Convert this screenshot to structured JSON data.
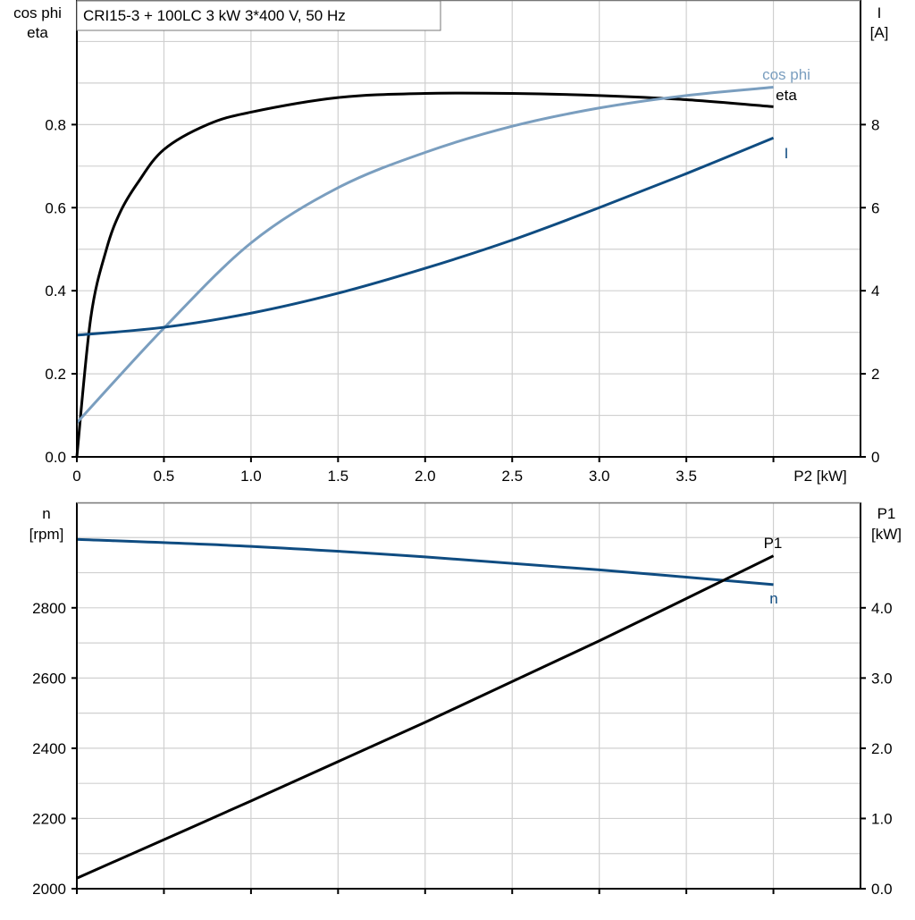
{
  "title": "CRI15-3 + 100LC   3 kW   3*400 V, 50 Hz",
  "chart_data": [
    {
      "type": "line",
      "xlabel": "P2 [kW]",
      "ylabel_left": [
        "cos phi",
        "eta"
      ],
      "ylabel_right": [
        "I",
        "[A]"
      ],
      "xlim": [
        0,
        4.5
      ],
      "ylim_left": [
        0,
        1.1
      ],
      "ylim_right": [
        0,
        11
      ],
      "x_ticks": [
        "0",
        "0.5",
        "1.0",
        "1.5",
        "2.0",
        "2.5",
        "3.0",
        "3.5"
      ],
      "y_ticks_left": [
        "0.0",
        "0.2",
        "0.4",
        "0.6",
        "0.8"
      ],
      "y_ticks_right": [
        "0",
        "2",
        "4",
        "6",
        "8"
      ],
      "grid": true,
      "series": [
        {
          "name": "eta",
          "axis": "left",
          "color": "#000000",
          "x": [
            0,
            0.08,
            0.17,
            0.25,
            0.35,
            0.5,
            0.75,
            1.0,
            1.5,
            2.0,
            2.5,
            3.0,
            3.5,
            4.0
          ],
          "y": [
            0,
            0.335,
            0.5,
            0.59,
            0.66,
            0.74,
            0.8,
            0.83,
            0.865,
            0.875,
            0.875,
            0.87,
            0.86,
            0.843
          ]
        },
        {
          "name": "cos phi",
          "axis": "left",
          "color": "#7a9ebf",
          "x": [
            0,
            0.5,
            1.0,
            1.5,
            2.0,
            2.5,
            3.0,
            3.5,
            4.0
          ],
          "y": [
            0.082,
            0.31,
            0.515,
            0.648,
            0.733,
            0.796,
            0.84,
            0.87,
            0.89
          ]
        },
        {
          "name": "I",
          "axis": "right",
          "color": "#0f4c81",
          "x": [
            0,
            0.5,
            1.0,
            1.5,
            2.0,
            2.5,
            3.0,
            3.5,
            4.0
          ],
          "y": [
            2.93,
            3.12,
            3.46,
            3.94,
            4.54,
            5.22,
            6.0,
            6.82,
            7.68
          ]
        }
      ]
    },
    {
      "type": "line",
      "ylabel_left": [
        "n",
        "[rpm]"
      ],
      "ylabel_right": [
        "P1",
        "[kW]"
      ],
      "xlim": [
        0,
        4.5
      ],
      "ylim_left": [
        2000,
        3100
      ],
      "ylim_right": [
        0,
        5.5
      ],
      "y_ticks_left": [
        "2000",
        "2200",
        "2400",
        "2600",
        "2800"
      ],
      "y_ticks_right": [
        "0.0",
        "1.0",
        "2.0",
        "3.0",
        "4.0"
      ],
      "grid": true,
      "series": [
        {
          "name": "n",
          "axis": "left",
          "color": "#0f4c81",
          "x": [
            0,
            1.0,
            2.0,
            3.0,
            4.0
          ],
          "y": [
            2995,
            2975,
            2945,
            2908,
            2866
          ]
        },
        {
          "name": "P1",
          "axis": "right",
          "color": "#000000",
          "x": [
            0,
            1.0,
            2.0,
            3.0,
            4.0
          ],
          "y": [
            0.15,
            1.25,
            2.37,
            3.53,
            4.74
          ]
        }
      ]
    }
  ]
}
